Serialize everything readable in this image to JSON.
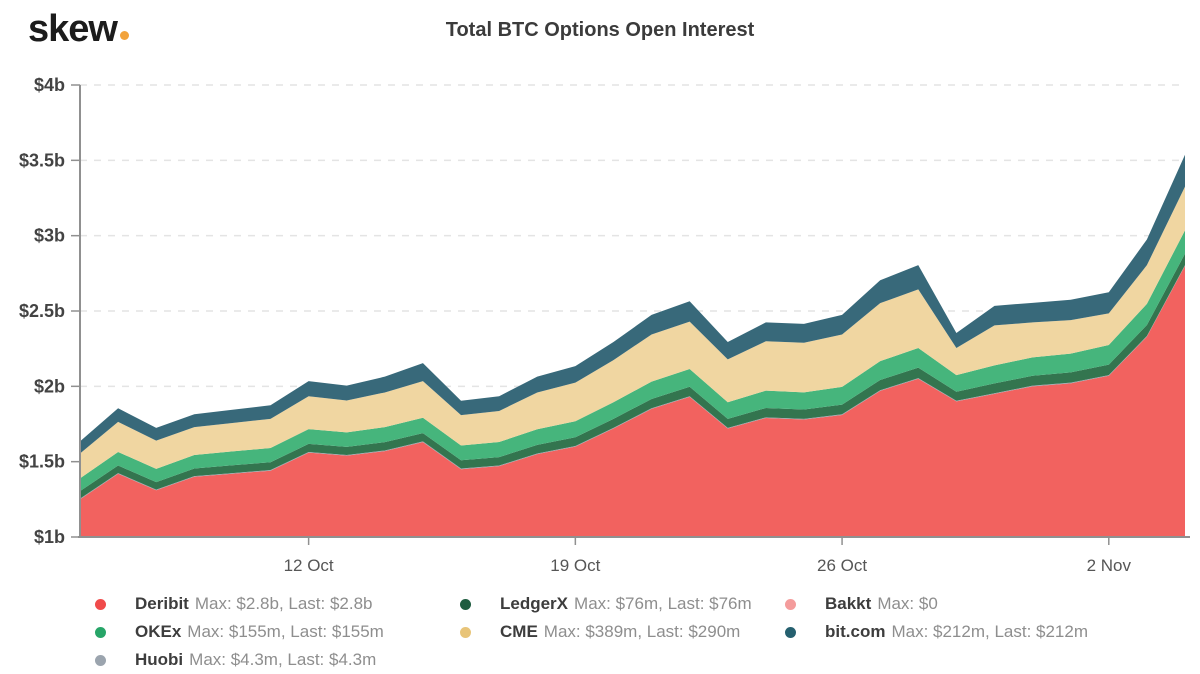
{
  "header": {
    "logo_text": "skew",
    "logo_dot_color": "#f2a33c",
    "title": "Total BTC Options Open Interest"
  },
  "chart_data": {
    "type": "area",
    "stacked": true,
    "title": "Total BTC Options Open Interest",
    "unit": "USD billions",
    "ylim": [
      1,
      4
    ],
    "grid": "horizontal-dashed",
    "legend_position": "bottom",
    "x": [
      "6 Oct",
      "7 Oct",
      "8 Oct",
      "9 Oct",
      "10 Oct",
      "11 Oct",
      "12 Oct",
      "13 Oct",
      "14 Oct",
      "15 Oct",
      "16 Oct",
      "17 Oct",
      "18 Oct",
      "19 Oct",
      "20 Oct",
      "21 Oct",
      "22 Oct",
      "23 Oct",
      "24 Oct",
      "25 Oct",
      "26 Oct",
      "27 Oct",
      "28 Oct",
      "29 Oct",
      "30 Oct",
      "31 Oct",
      "1 Nov",
      "2 Nov",
      "3 Nov",
      "4 Nov"
    ],
    "x_tick_labels": [
      "12 Oct",
      "19 Oct",
      "26 Oct",
      "2 Nov"
    ],
    "x_tick_indices": [
      6,
      13,
      20,
      27
    ],
    "y_ticks": [
      {
        "label": "$1b",
        "value": 1
      },
      {
        "label": "$1.5b",
        "value": 1.5
      },
      {
        "label": "$2b",
        "value": 2
      },
      {
        "label": "$2.5b",
        "value": 2.5
      },
      {
        "label": "$3b",
        "value": 3
      },
      {
        "label": "$3.5b",
        "value": 3.5
      },
      {
        "label": "$4b",
        "value": 4
      }
    ],
    "series": [
      {
        "name": "Deribit",
        "color": "#F2625F",
        "dot_color": "#F04B4B",
        "legend_detail": "Max: $2.8b, Last: $2.8b",
        "legend_column": 0,
        "legend_row": 0,
        "values": [
          1.25,
          1.42,
          1.31,
          1.4,
          1.42,
          1.44,
          1.56,
          1.54,
          1.57,
          1.63,
          1.45,
          1.47,
          1.55,
          1.6,
          1.72,
          1.85,
          1.93,
          1.72,
          1.79,
          1.78,
          1.81,
          1.97,
          2.05,
          1.9,
          1.95,
          2.0,
          2.02,
          2.07,
          2.33,
          2.8
        ]
      },
      {
        "name": "Huobi",
        "color": "#9BA4AE",
        "dot_color": "#9BA4AE",
        "legend_detail": "Max: $4.3m, Last: $4.3m",
        "legend_column": 0,
        "legend_row": 2,
        "values": [
          0.0043,
          0.0043,
          0.0043,
          0.0043,
          0.0043,
          0.0043,
          0.0043,
          0.0043,
          0.0043,
          0.0043,
          0.0043,
          0.0043,
          0.0043,
          0.0043,
          0.0043,
          0.0043,
          0.0043,
          0.0043,
          0.0043,
          0.0043,
          0.0043,
          0.0043,
          0.0043,
          0.0043,
          0.0043,
          0.0043,
          0.0043,
          0.0043,
          0.0043,
          0.0043
        ]
      },
      {
        "name": "LedgerX",
        "color": "#33754F",
        "dot_color": "#1E5C3F",
        "legend_detail": "Max: $76m, Last: $76m",
        "legend_column": 1,
        "legend_row": 0,
        "values": [
          0.05,
          0.05,
          0.05,
          0.05,
          0.052,
          0.052,
          0.054,
          0.054,
          0.055,
          0.055,
          0.055,
          0.056,
          0.057,
          0.058,
          0.06,
          0.062,
          0.063,
          0.06,
          0.062,
          0.062,
          0.064,
          0.068,
          0.07,
          0.06,
          0.065,
          0.066,
          0.068,
          0.07,
          0.073,
          0.076
        ]
      },
      {
        "name": "OKEx",
        "color": "#46B57C",
        "dot_color": "#27A568",
        "legend_detail": "Max: $155m, Last: $155m",
        "legend_column": 0,
        "legend_row": 1,
        "values": [
          0.085,
          0.09,
          0.088,
          0.09,
          0.092,
          0.094,
          0.098,
          0.096,
          0.1,
          0.102,
          0.098,
          0.1,
          0.104,
          0.106,
          0.11,
          0.115,
          0.118,
          0.11,
          0.115,
          0.114,
          0.118,
          0.125,
          0.13,
          0.11,
          0.12,
          0.122,
          0.125,
          0.13,
          0.14,
          0.155
        ]
      },
      {
        "name": "CME",
        "color": "#F0D6A1",
        "dot_color": "#E8C478",
        "legend_detail": "Max: $389m, Last: $290m",
        "legend_column": 1,
        "legend_row": 1,
        "values": [
          0.165,
          0.2,
          0.187,
          0.185,
          0.188,
          0.194,
          0.218,
          0.212,
          0.23,
          0.243,
          0.202,
          0.206,
          0.244,
          0.256,
          0.28,
          0.313,
          0.314,
          0.285,
          0.328,
          0.329,
          0.348,
          0.385,
          0.389,
          0.18,
          0.265,
          0.232,
          0.222,
          0.21,
          0.257,
          0.29
        ]
      },
      {
        "name": "Bakkt",
        "color": "#F49C9C",
        "dot_color": "#F49C9C",
        "legend_detail": "Max: $0",
        "legend_column": 2,
        "legend_row": 0,
        "values": [
          0,
          0,
          0,
          0,
          0,
          0,
          0,
          0,
          0,
          0,
          0,
          0,
          0,
          0,
          0,
          0,
          0,
          0,
          0,
          0,
          0,
          0,
          0,
          0,
          0,
          0,
          0,
          0,
          0,
          0
        ]
      },
      {
        "name": "bit.com",
        "color": "#38697A",
        "dot_color": "#25606F",
        "legend_detail": "Max: $212m, Last: $212m",
        "legend_column": 2,
        "legend_row": 1,
        "values": [
          0.08,
          0.09,
          0.085,
          0.085,
          0.088,
          0.09,
          0.1,
          0.098,
          0.105,
          0.12,
          0.095,
          0.098,
          0.105,
          0.11,
          0.12,
          0.13,
          0.135,
          0.115,
          0.125,
          0.125,
          0.13,
          0.152,
          0.161,
          0.1,
          0.13,
          0.13,
          0.135,
          0.14,
          0.17,
          0.212
        ]
      }
    ]
  }
}
